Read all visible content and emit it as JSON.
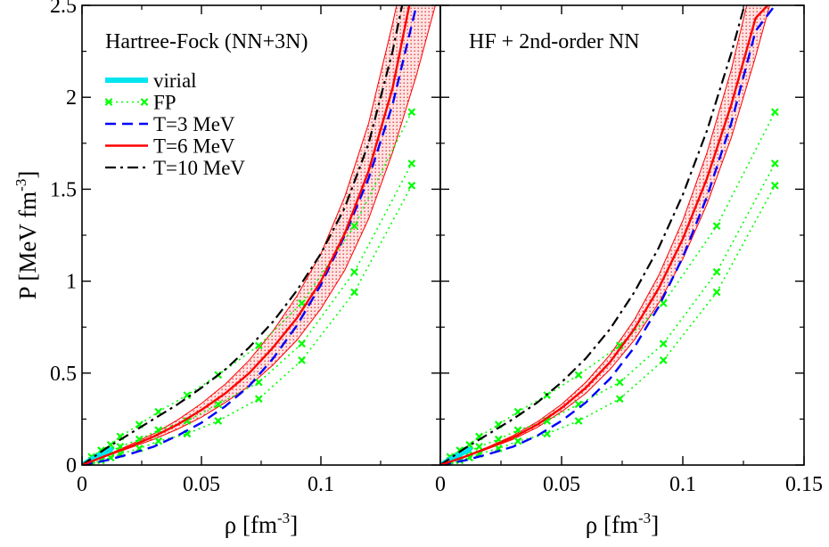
{
  "chart_data": [
    {
      "type": "line",
      "title": "Hartree-Fock (NN+3N)",
      "xlabel": "ρ [fm",
      "xlabel_sup": "-3",
      "xlabel_end": "]",
      "ylabel": "P [MeV fm",
      "ylabel_sup": "-3",
      "ylabel_end": "]",
      "xlim": [
        0,
        0.15
      ],
      "ylim": [
        0,
        2.5
      ],
      "x_tick_labels": [
        "0",
        "0.05",
        "0.1",
        ""
      ],
      "y_tick_labels": [
        "0",
        "0.5",
        "1",
        "1.5",
        "2",
        "2.5"
      ],
      "legend": {
        "placement": "top-left",
        "entries": [
          "virial",
          "FP",
          "T=3 MeV",
          "T=6 MeV",
          "T=10 MeV"
        ]
      },
      "colors": {
        "virial": "#00e5ee",
        "FP": "#00ff00",
        "T3": "#0000ff",
        "T6": "#ff0000",
        "T10": "#000000",
        "band": "#ff0000"
      },
      "series": [
        {
          "name": "virial",
          "x": [
            0,
            0.002,
            0.004,
            0.006,
            0.008,
            0.01,
            0.012
          ],
          "y": [
            0,
            0.015,
            0.03,
            0.045,
            0.058,
            0.072,
            0.085
          ]
        },
        {
          "name": "T=3 MeV",
          "x": [
            0,
            0.01,
            0.02,
            0.03,
            0.04,
            0.05,
            0.06,
            0.07,
            0.08,
            0.09,
            0.1,
            0.11,
            0.12,
            0.13,
            0.14
          ],
          "y": [
            0,
            0.025,
            0.06,
            0.1,
            0.16,
            0.23,
            0.32,
            0.43,
            0.58,
            0.76,
            0.98,
            1.25,
            1.56,
            1.96,
            2.5
          ]
        },
        {
          "name": "T=6 MeV",
          "x": [
            0,
            0.01,
            0.02,
            0.03,
            0.04,
            0.05,
            0.06,
            0.07,
            0.08,
            0.09,
            0.1,
            0.11,
            0.12,
            0.13,
            0.137
          ],
          "y": [
            0,
            0.05,
            0.1,
            0.155,
            0.22,
            0.3,
            0.39,
            0.5,
            0.64,
            0.8,
            1.0,
            1.26,
            1.6,
            2.05,
            2.5
          ]
        },
        {
          "name": "T=10 MeV",
          "x": [
            0,
            0.01,
            0.02,
            0.03,
            0.04,
            0.05,
            0.06,
            0.07,
            0.08,
            0.09,
            0.1,
            0.11,
            0.12,
            0.13,
            0.134
          ],
          "y": [
            0,
            0.09,
            0.17,
            0.25,
            0.33,
            0.42,
            0.52,
            0.64,
            0.78,
            0.95,
            1.15,
            1.4,
            1.75,
            2.25,
            2.5
          ]
        },
        {
          "name": "FP",
          "x": [
            0.004,
            0.008,
            0.012,
            0.016,
            0.024,
            0.032,
            0.044,
            0.057,
            0.074,
            0.092,
            0.114,
            0.138
          ],
          "y": [
            0.045,
            0.08,
            0.11,
            0.155,
            0.22,
            0.29,
            0.38,
            0.49,
            0.65,
            0.88,
            1.3,
            1.92
          ]
        },
        {
          "name": "FP",
          "x": [
            0.004,
            0.008,
            0.012,
            0.016,
            0.024,
            0.032,
            0.044,
            0.057,
            0.074,
            0.092,
            0.114,
            0.138
          ],
          "y": [
            0.025,
            0.05,
            0.075,
            0.1,
            0.14,
            0.19,
            0.24,
            0.33,
            0.45,
            0.66,
            1.05,
            1.64
          ]
        },
        {
          "name": "FP",
          "x": [
            0.004,
            0.008,
            0.012,
            0.016,
            0.024,
            0.032,
            0.044,
            0.057,
            0.074,
            0.092,
            0.114,
            0.138
          ],
          "y": [
            0.01,
            0.025,
            0.04,
            0.06,
            0.09,
            0.13,
            0.17,
            0.24,
            0.36,
            0.57,
            0.94,
            1.52
          ]
        }
      ],
      "band": {
        "name": "T=6 MeV uncertainty",
        "x": [
          0,
          0.01,
          0.02,
          0.03,
          0.04,
          0.05,
          0.06,
          0.07,
          0.08,
          0.09,
          0.1,
          0.11,
          0.12,
          0.13,
          0.14,
          0.15
        ],
        "upper": [
          0,
          0.052,
          0.11,
          0.17,
          0.245,
          0.335,
          0.44,
          0.57,
          0.73,
          0.92,
          1.15,
          1.46,
          1.86,
          2.4,
          3.0,
          3.6
        ],
        "lower": [
          0,
          0.047,
          0.093,
          0.14,
          0.195,
          0.26,
          0.34,
          0.43,
          0.545,
          0.68,
          0.85,
          1.06,
          1.34,
          1.7,
          2.12,
          2.6
        ]
      }
    },
    {
      "type": "line",
      "title": "HF + 2nd-order NN",
      "xlabel": "ρ [fm",
      "xlabel_sup": "-3",
      "xlabel_end": "]",
      "xlim": [
        0,
        0.15
      ],
      "ylim": [
        0,
        2.5
      ],
      "x_tick_labels": [
        "0",
        "0.05",
        "0.1",
        "0.15"
      ],
      "colors": {
        "virial": "#00e5ee",
        "FP": "#00ff00",
        "T3": "#0000ff",
        "T6": "#ff0000",
        "T10": "#000000",
        "band": "#ff0000"
      },
      "series": [
        {
          "name": "virial",
          "x": [
            0,
            0.002,
            0.004,
            0.006,
            0.008,
            0.01,
            0.012
          ],
          "y": [
            0,
            0.015,
            0.03,
            0.045,
            0.058,
            0.072,
            0.085
          ]
        },
        {
          "name": "T=3 MeV",
          "x": [
            0,
            0.01,
            0.02,
            0.03,
            0.04,
            0.05,
            0.06,
            0.07,
            0.08,
            0.09,
            0.1,
            0.11,
            0.12,
            0.13,
            0.138
          ],
          "y": [
            0,
            0.025,
            0.06,
            0.1,
            0.16,
            0.24,
            0.34,
            0.47,
            0.64,
            0.86,
            1.13,
            1.46,
            1.86,
            2.36,
            2.5
          ]
        },
        {
          "name": "T=6 MeV",
          "x": [
            0,
            0.01,
            0.02,
            0.03,
            0.04,
            0.05,
            0.06,
            0.07,
            0.08,
            0.09,
            0.1,
            0.11,
            0.12,
            0.13,
            0.135
          ],
          "y": [
            0,
            0.045,
            0.095,
            0.15,
            0.22,
            0.31,
            0.42,
            0.56,
            0.74,
            0.96,
            1.23,
            1.56,
            1.96,
            2.43,
            2.5
          ]
        },
        {
          "name": "T=10 MeV",
          "x": [
            0,
            0.01,
            0.02,
            0.03,
            0.04,
            0.05,
            0.06,
            0.07,
            0.08,
            0.09,
            0.1,
            0.11,
            0.12,
            0.13,
            0.133
          ],
          "y": [
            0,
            0.09,
            0.17,
            0.25,
            0.34,
            0.45,
            0.58,
            0.74,
            0.94,
            1.18,
            1.47,
            1.82,
            2.24,
            2.72,
            2.5
          ]
        },
        {
          "name": "FP",
          "x": [
            0.004,
            0.008,
            0.012,
            0.016,
            0.024,
            0.032,
            0.044,
            0.057,
            0.074,
            0.092,
            0.114,
            0.138
          ],
          "y": [
            0.045,
            0.08,
            0.11,
            0.155,
            0.22,
            0.29,
            0.38,
            0.49,
            0.65,
            0.88,
            1.3,
            1.92
          ]
        },
        {
          "name": "FP",
          "x": [
            0.004,
            0.008,
            0.012,
            0.016,
            0.024,
            0.032,
            0.044,
            0.057,
            0.074,
            0.092,
            0.114,
            0.138
          ],
          "y": [
            0.025,
            0.05,
            0.075,
            0.1,
            0.14,
            0.19,
            0.24,
            0.33,
            0.45,
            0.66,
            1.05,
            1.64
          ]
        },
        {
          "name": "FP",
          "x": [
            0.004,
            0.008,
            0.012,
            0.016,
            0.024,
            0.032,
            0.044,
            0.057,
            0.074,
            0.092,
            0.114,
            0.138
          ],
          "y": [
            0.01,
            0.025,
            0.04,
            0.06,
            0.09,
            0.13,
            0.17,
            0.24,
            0.36,
            0.57,
            0.94,
            1.52
          ]
        }
      ],
      "band": {
        "name": "T=6 MeV uncertainty",
        "x": [
          0,
          0.01,
          0.02,
          0.03,
          0.04,
          0.05,
          0.06,
          0.07,
          0.08,
          0.09,
          0.1,
          0.11,
          0.12,
          0.13,
          0.14
        ],
        "upper": [
          0,
          0.047,
          0.1,
          0.16,
          0.235,
          0.33,
          0.45,
          0.6,
          0.79,
          1.03,
          1.33,
          1.7,
          2.15,
          2.7,
          3.3
        ],
        "lower": [
          0,
          0.043,
          0.09,
          0.14,
          0.205,
          0.29,
          0.39,
          0.52,
          0.68,
          0.88,
          1.12,
          1.42,
          1.78,
          2.22,
          2.7
        ]
      }
    }
  ]
}
